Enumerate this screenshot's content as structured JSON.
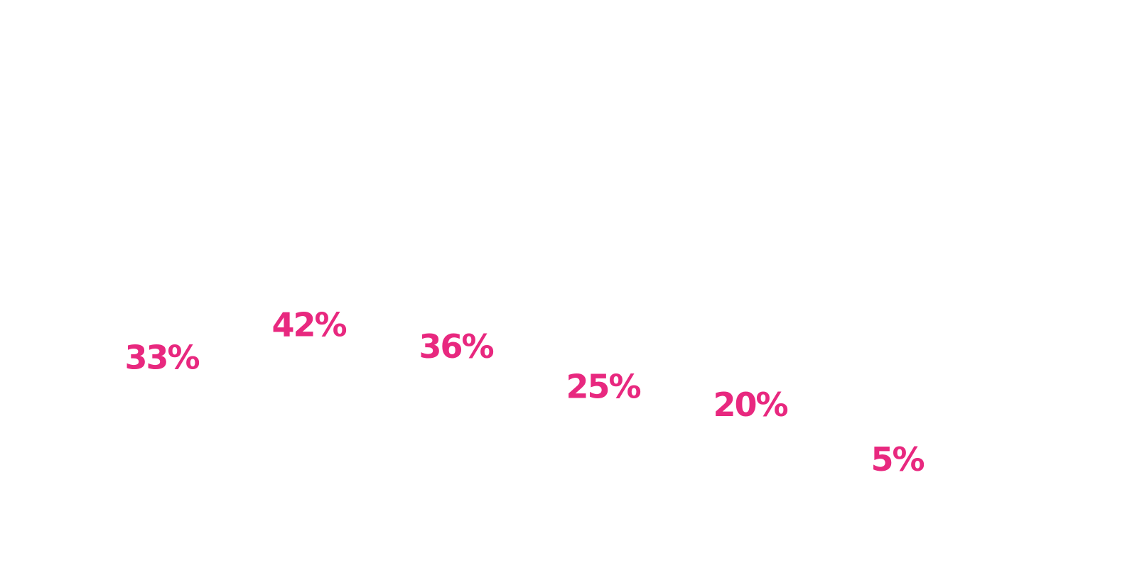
{
  "chart_data": {
    "type": "label",
    "values": [
      33,
      42,
      36,
      25,
      20,
      5
    ],
    "value_labels": [
      "33%",
      "42%",
      "36%",
      "25%",
      "20%",
      "5%"
    ],
    "color": "#e8287f",
    "ylim": [
      0,
      50
    ]
  }
}
